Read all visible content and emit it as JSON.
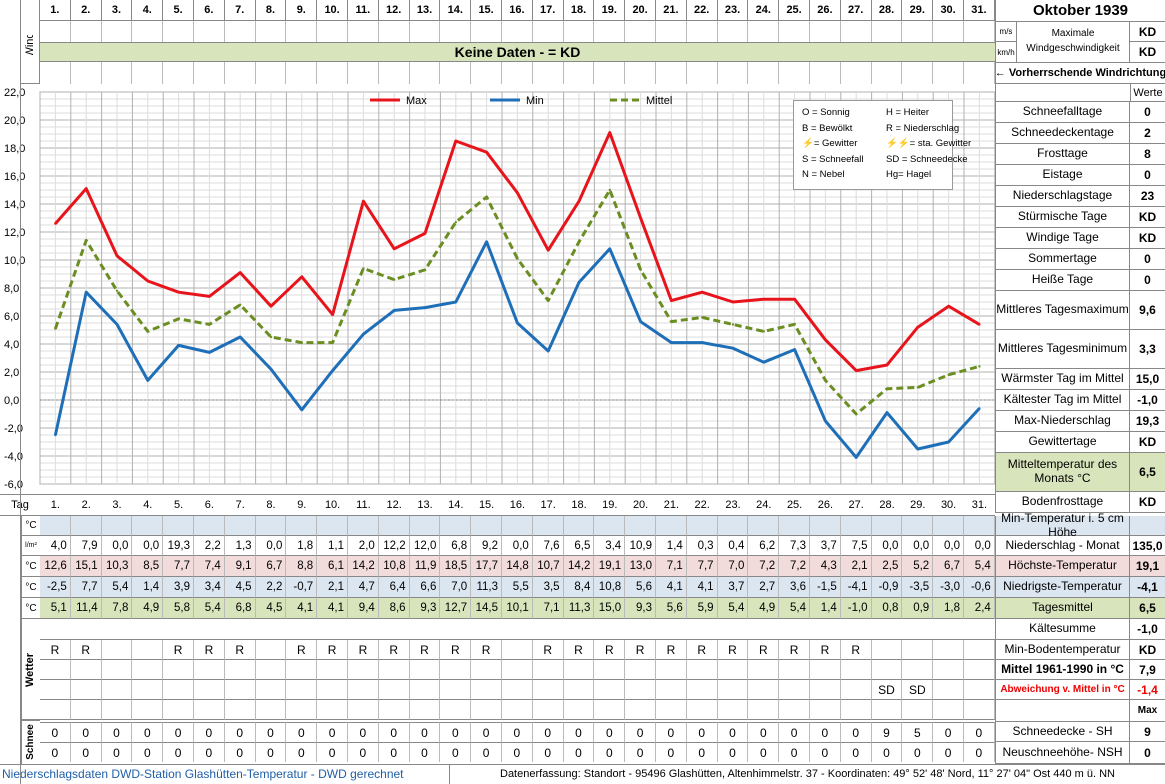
{
  "header": {
    "month_title": "Oktober 1939",
    "wind_label": "Wind",
    "tag_label": "Tag",
    "days": [
      "1.",
      "2.",
      "3.",
      "4.",
      "5.",
      "6.",
      "7.",
      "8.",
      "9.",
      "10.",
      "11.",
      "12.",
      "13.",
      "14.",
      "15.",
      "16.",
      "17.",
      "18.",
      "19.",
      "20.",
      "21.",
      "22.",
      "23.",
      "24.",
      "25.",
      "26.",
      "27.",
      "28.",
      "29.",
      "30.",
      "31."
    ],
    "no_data_text": "Keine Daten -  = KD",
    "unit_ms": "m/s",
    "unit_kmh": "km/h",
    "max_wind_label": "Maximale Windgeschwindigkeit",
    "max_wind_ms": "KD",
    "max_wind_kmh": "KD",
    "wind_direction_label": "← Vorherrschende Windrichtung"
  },
  "legend_box": [
    [
      "O = Sonnig",
      "H = Heiter"
    ],
    [
      "B = Bewölkt",
      "R = Niederschlag"
    ],
    [
      "⚡= Gewitter",
      "⚡⚡= sta. Gewitter"
    ],
    [
      "S = Schneefall",
      "SD = Schneedecke"
    ],
    [
      "N = Nebel",
      "Hg= Hagel"
    ]
  ],
  "chart_data": {
    "type": "line",
    "x": [
      1,
      2,
      3,
      4,
      5,
      6,
      7,
      8,
      9,
      10,
      11,
      12,
      13,
      14,
      15,
      16,
      17,
      18,
      19,
      20,
      21,
      22,
      23,
      24,
      25,
      26,
      27,
      28,
      29,
      30,
      31
    ],
    "series": [
      {
        "name": "Max",
        "color": "#e8141c",
        "style": "solid",
        "values": [
          12.6,
          15.1,
          10.3,
          8.5,
          7.7,
          7.4,
          9.1,
          6.7,
          8.8,
          6.1,
          14.2,
          10.8,
          11.9,
          18.5,
          17.7,
          14.8,
          10.7,
          14.2,
          19.1,
          13.0,
          7.1,
          7.7,
          7.0,
          7.2,
          7.2,
          4.3,
          2.1,
          2.5,
          5.2,
          6.7,
          5.4
        ]
      },
      {
        "name": "Min",
        "color": "#1f6fb8",
        "style": "solid",
        "values": [
          -2.5,
          7.7,
          5.4,
          1.4,
          3.9,
          3.4,
          4.5,
          2.2,
          -0.7,
          2.1,
          4.7,
          6.4,
          6.6,
          7.0,
          11.3,
          5.5,
          3.5,
          8.4,
          10.8,
          5.6,
          4.1,
          4.1,
          3.7,
          2.7,
          3.6,
          -1.5,
          -4.1,
          -0.9,
          -3.5,
          -3.0,
          -0.6
        ]
      },
      {
        "name": "Mittel",
        "color": "#6b8e23",
        "style": "dashed",
        "values": [
          5.1,
          11.4,
          7.8,
          4.9,
          5.8,
          5.4,
          6.8,
          4.5,
          4.1,
          4.1,
          9.4,
          8.6,
          9.3,
          12.7,
          14.5,
          10.1,
          7.1,
          11.3,
          15.0,
          9.3,
          5.6,
          5.9,
          5.4,
          4.9,
          5.4,
          1.4,
          -1.0,
          0.8,
          0.9,
          1.8,
          2.4
        ]
      }
    ],
    "ylim": [
      -6,
      22
    ],
    "yticks": [
      "22,0",
      "20,0",
      "18,0",
      "16,0",
      "14,0",
      "12,0",
      "10,0",
      "8,0",
      "6,0",
      "4,0",
      "2,0",
      "0,0",
      "-2,0",
      "-4,0",
      "-6,0"
    ],
    "grid": true,
    "legend_position": "top"
  },
  "table": {
    "rows": [
      {
        "unit": "°C",
        "color": "#dce6f1",
        "values": [
          "",
          "",
          "",
          "",
          "",
          "",
          "",
          "",
          "",
          "",
          "",
          "",
          "",
          "",
          "",
          "",
          "",
          "",
          "",
          "",
          "",
          "",
          "",
          "",
          "",
          "",
          "",
          "",
          "",
          "",
          ""
        ]
      },
      {
        "unit": "l/m²",
        "color": "#ffffff",
        "values": [
          "4,0",
          "7,9",
          "0,0",
          "0,0",
          "19,3",
          "2,2",
          "1,3",
          "0,0",
          "1,8",
          "1,1",
          "2,0",
          "12,2",
          "12,0",
          "6,8",
          "9,2",
          "0,0",
          "7,6",
          "6,5",
          "3,4",
          "10,9",
          "1,4",
          "0,3",
          "0,4",
          "6,2",
          "7,3",
          "3,7",
          "7,5",
          "0,0",
          "0,0",
          "0,0",
          "0,0"
        ]
      },
      {
        "unit": "°C",
        "color": "#f2dcdb",
        "values": [
          "12,6",
          "15,1",
          "10,3",
          "8,5",
          "7,7",
          "7,4",
          "9,1",
          "6,7",
          "8,8",
          "6,1",
          "14,2",
          "10,8",
          "11,9",
          "18,5",
          "17,7",
          "14,8",
          "10,7",
          "14,2",
          "19,1",
          "13,0",
          "7,1",
          "7,7",
          "7,0",
          "7,2",
          "7,2",
          "4,3",
          "2,1",
          "2,5",
          "5,2",
          "6,7",
          "5,4"
        ]
      },
      {
        "unit": "°C",
        "color": "#dce6f1",
        "values": [
          "-2,5",
          "7,7",
          "5,4",
          "1,4",
          "3,9",
          "3,4",
          "4,5",
          "2,2",
          "-0,7",
          "2,1",
          "4,7",
          "6,4",
          "6,6",
          "7,0",
          "11,3",
          "5,5",
          "3,5",
          "8,4",
          "10,8",
          "5,6",
          "4,1",
          "4,1",
          "3,7",
          "2,7",
          "3,6",
          "-1,5",
          "-4,1",
          "-0,9",
          "-3,5",
          "-3,0",
          "-0,6"
        ]
      },
      {
        "unit": "°C",
        "color": "#d8e4bc",
        "values": [
          "5,1",
          "11,4",
          "7,8",
          "4,9",
          "5,8",
          "5,4",
          "6,8",
          "4,5",
          "4,1",
          "4,1",
          "9,4",
          "8,6",
          "9,3",
          "12,7",
          "14,5",
          "10,1",
          "7,1",
          "11,3",
          "15,0",
          "9,3",
          "5,6",
          "5,9",
          "5,4",
          "4,9",
          "5,4",
          "1,4",
          "-1,0",
          "0,8",
          "0,9",
          "1,8",
          "2,4"
        ]
      }
    ],
    "wetter_label": "Wetter",
    "wetter_rows": [
      [
        "R",
        "R",
        "",
        "",
        "R",
        "R",
        "R",
        "",
        "R",
        "R",
        "R",
        "R",
        "R",
        "R",
        "R",
        "",
        "R",
        "R",
        "R",
        "R",
        "R",
        "R",
        "R",
        "R",
        "R",
        "R",
        "R",
        "",
        "",
        "",
        ""
      ],
      [
        "",
        "",
        "",
        "",
        "",
        "",
        "",
        "",
        "",
        "",
        "",
        "",
        "",
        "",
        "",
        "",
        "",
        "",
        "",
        "",
        "",
        "",
        "",
        "",
        "",
        "",
        "",
        "",
        "",
        "",
        ""
      ],
      [
        "",
        "",
        "",
        "",
        "",
        "",
        "",
        "",
        "",
        "",
        "",
        "",
        "",
        "",
        "",
        "",
        "",
        "",
        "",
        "",
        "",
        "",
        "",
        "",
        "",
        "",
        "",
        "SD",
        "SD",
        "",
        ""
      ],
      [
        "",
        "",
        "",
        "",
        "",
        "",
        "",
        "",
        "",
        "",
        "",
        "",
        "",
        "",
        "",
        "",
        "",
        "",
        "",
        "",
        "",
        "",
        "",
        "",
        "",
        "",
        "",
        "",
        "",
        "",
        ""
      ]
    ],
    "schnee_label": "Schnee",
    "schnee_rows": [
      [
        "0",
        "0",
        "0",
        "0",
        "0",
        "0",
        "0",
        "0",
        "0",
        "0",
        "0",
        "0",
        "0",
        "0",
        "0",
        "0",
        "0",
        "0",
        "0",
        "0",
        "0",
        "0",
        "0",
        "0",
        "0",
        "0",
        "0",
        "9",
        "5",
        "0",
        "0"
      ],
      [
        "0",
        "0",
        "0",
        "0",
        "0",
        "0",
        "0",
        "0",
        "0",
        "0",
        "0",
        "0",
        "0",
        "0",
        "0",
        "0",
        "0",
        "0",
        "0",
        "0",
        "0",
        "0",
        "0",
        "0",
        "0",
        "0",
        "0",
        "0",
        "0",
        "0",
        "0"
      ]
    ]
  },
  "stats": {
    "werte_label": "Werte",
    "items": [
      {
        "label": "Schneefalltage",
        "value": "0"
      },
      {
        "label": "Schneedeckentage",
        "value": "2"
      },
      {
        "label": "Frosttage",
        "value": "8"
      },
      {
        "label": "Eistage",
        "value": "0"
      },
      {
        "label": "Niederschlagstage",
        "value": "23"
      },
      {
        "label": "Stürmische Tage",
        "value": "KD"
      },
      {
        "label": "Windige Tage",
        "value": "KD"
      },
      {
        "label": "Sommertage",
        "value": "0"
      },
      {
        "label": "Heiße Tage",
        "value": "0"
      },
      {
        "label": "Mittleres Tagesmaximum",
        "value": "9,6"
      },
      {
        "label": "Mittleres Tagesminimum",
        "value": "3,3"
      },
      {
        "label": "Wärmster Tag im Mittel",
        "value": "15,0"
      },
      {
        "label": "Kältester Tag im Mittel",
        "value": "-1,0"
      },
      {
        "label": "Max-Niederschlag",
        "value": "19,3"
      },
      {
        "label": "Gewittertage",
        "value": "KD"
      },
      {
        "label": "Mitteltemperatur des Monats °C",
        "value": "6,5"
      },
      {
        "label": "Bodenfrosttage",
        "value": "KD"
      }
    ],
    "lower": [
      {
        "label": "Min-Temperatur i. 5 cm Höhe",
        "value": ""
      },
      {
        "label": "Niederschlag - Monat",
        "value": "135,0"
      },
      {
        "label": "Höchste-Temperatur",
        "value": "19,1"
      },
      {
        "label": "Niedrigste-Temperatur",
        "value": "-4,1"
      },
      {
        "label": "Tagesmittel",
        "value": "6,5"
      },
      {
        "label": "Kältesumme",
        "value": "-1,0"
      },
      {
        "label": "Min-Bodentemperatur",
        "value": "KD"
      },
      {
        "label": "Mittel 1961-1990 in °C",
        "value": "7,9"
      },
      {
        "label": "Abweichung v. Mittel in °C",
        "value": "-1,4"
      },
      {
        "label": "",
        "value": "Max"
      },
      {
        "label": "Schneedecke -   SH",
        "value": "9"
      },
      {
        "label": "Neuschneehöhe- NSH",
        "value": "0"
      }
    ]
  },
  "footer": {
    "left": "Niederschlagsdaten DWD-Station Glashütten-Temperatur -  DWD gerechnet",
    "right": "Datenerfassung: Standort -  95496  Glashütten, Altenhimmelstr. 37 - Koordinaten:  49° 52' 48' Nord,   11° 27' 04\" Ost   440 m ü. NN"
  }
}
